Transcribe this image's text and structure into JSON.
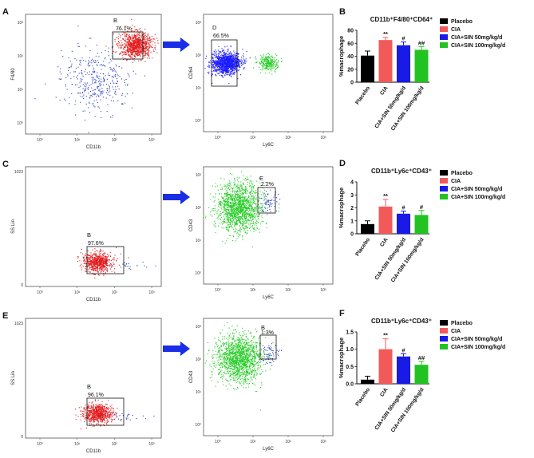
{
  "figure": {
    "rows": [
      {
        "flow_left": {
          "panel_label": "A",
          "x_axis_label": "CD11b",
          "y_axis_label": "F4/80",
          "x_ticks": [
            "10⁰",
            "10¹",
            "10²",
            "10³"
          ],
          "y_ticks": [
            "10⁰",
            "10¹",
            "10²",
            "10³"
          ],
          "gate_label": "B",
          "gate_percent": "76.1%",
          "dot_colors": {
            "population": "#e41a1c",
            "other": "#2b3fbf"
          }
        },
        "flow_right": {
          "x_axis_label": "Ly6C",
          "y_axis_label": "CD64",
          "x_ticks": [
            "10⁰",
            "10¹",
            "10²",
            "10³"
          ],
          "y_ticks": [
            "10⁰",
            "10¹",
            "10²",
            "10³"
          ],
          "gate_label": "D",
          "gate_percent": "66.5%",
          "dot_colors": {
            "gated": "#1a1aff",
            "other": "#22cc22"
          }
        },
        "arrow_icon": "right-arrow-icon"
      },
      {
        "flow_left": {
          "panel_label": "C",
          "x_axis_label": "CD11b",
          "y_axis_label": "SS Lin",
          "x_ticks": [
            "10⁰",
            "10¹",
            "10²",
            "10³"
          ],
          "y_ticks": [
            "0",
            "1023"
          ],
          "gate_label": "B",
          "gate_percent": "97.6%",
          "dot_colors": {
            "population": "#e41a1c",
            "other": "#2b3fbf"
          }
        },
        "flow_right": {
          "x_axis_label": "Ly6C",
          "y_axis_label": "CD43",
          "x_ticks": [
            "10⁰",
            "10¹",
            "10²",
            "10³"
          ],
          "y_ticks": [
            "10⁰",
            "10¹",
            "10²",
            "10³"
          ],
          "gate_label": "E",
          "gate_percent": "2.2%",
          "dot_colors": {
            "gated": "#2b3fbf",
            "other": "#22cc22"
          }
        },
        "arrow_icon": "right-arrow-icon"
      },
      {
        "flow_left": {
          "panel_label": "E",
          "x_axis_label": "CD11b",
          "y_axis_label": "SS Lin",
          "x_ticks": [
            "10⁰",
            "10¹",
            "10²",
            "10³"
          ],
          "y_ticks": [
            "0",
            "1023"
          ],
          "gate_label": "B",
          "gate_percent": "96.1%",
          "dot_colors": {
            "population": "#e41a1c",
            "other": "#2b3fbf"
          }
        },
        "flow_right": {
          "x_axis_label": "Ly6C",
          "y_axis_label": "CD43",
          "x_ticks": [
            "10⁰",
            "10¹",
            "10²",
            "10³"
          ],
          "y_ticks": [
            "10⁰",
            "10¹",
            "10²",
            "10³"
          ],
          "gate_label": "B",
          "gate_percent": "1.3%",
          "dot_colors": {
            "gated": "#2b3fbf",
            "other": "#22cc22"
          }
        },
        "arrow_icon": "right-arrow-icon"
      }
    ]
  },
  "chart_data": [
    {
      "type": "bar",
      "panel_label": "B",
      "title": "CD11b⁺F4/80⁺CD64⁺",
      "ylabel": "%macrophage",
      "ylim": [
        0,
        80
      ],
      "yticks": [
        "0",
        "20",
        "40",
        "60",
        "80"
      ],
      "categories": [
        "Placebo",
        "CIA",
        "CIA+SIN 50mg/kg/d",
        "CIA+SIN 100mg/kg/d"
      ],
      "values": [
        41,
        65,
        57,
        50
      ],
      "errors": [
        7,
        4,
        5,
        5
      ],
      "significance": [
        "",
        "**",
        "#",
        "##"
      ],
      "colors": [
        "#000000",
        "#f25a5a",
        "#1a1ae6",
        "#22c222"
      ],
      "legend": [
        "Placebo",
        "CIA",
        "CIA+SIN 50mg/kg/d",
        "CIA+SIN 100mg/kg/d"
      ]
    },
    {
      "type": "bar",
      "panel_label": "D",
      "title": "CD11b⁺Ly6c⁺CD43⁺",
      "ylabel": "%macrophage",
      "ylim": [
        0,
        4
      ],
      "yticks": [
        "0",
        "1",
        "2",
        "3",
        "4"
      ],
      "categories": [
        "Placebo",
        "CIA",
        "CIA+SIN 50mg/kg/d",
        "CIA+SIN 100mg/kg/d"
      ],
      "values": [
        0.75,
        2.1,
        1.55,
        1.45
      ],
      "errors": [
        0.25,
        0.55,
        0.2,
        0.35
      ],
      "significance": [
        "",
        "**",
        "#",
        "#"
      ],
      "colors": [
        "#000000",
        "#f25a5a",
        "#1a1ae6",
        "#22c222"
      ],
      "legend": [
        "Placebo",
        "CIA",
        "CIA+SIN 50mg/kg/d",
        "CIA+SIN 100mg/kg/d"
      ]
    },
    {
      "type": "bar",
      "panel_label": "F",
      "title": "CD11b⁺Ly6c⁺CD43⁺",
      "ylabel": "%macrophage",
      "ylim": [
        0,
        1.5
      ],
      "yticks": [
        "0.0",
        "0.5",
        "1.0",
        "1.5"
      ],
      "categories": [
        "Placebo",
        "CIA",
        "CIA+SIN 50mg/kg/d",
        "CIA+SIN 100mg/kg/d"
      ],
      "values": [
        0.12,
        1.0,
        0.79,
        0.55
      ],
      "errors": [
        0.1,
        0.3,
        0.08,
        0.1
      ],
      "significance": [
        "",
        "**",
        "#",
        "##"
      ],
      "colors": [
        "#000000",
        "#f25a5a",
        "#1a1ae6",
        "#22c222"
      ],
      "legend": [
        "Placebo",
        "CIA",
        "CIA+SIN 50mg/kg/d",
        "CIA+SIN 100mg/kg/d"
      ]
    }
  ]
}
